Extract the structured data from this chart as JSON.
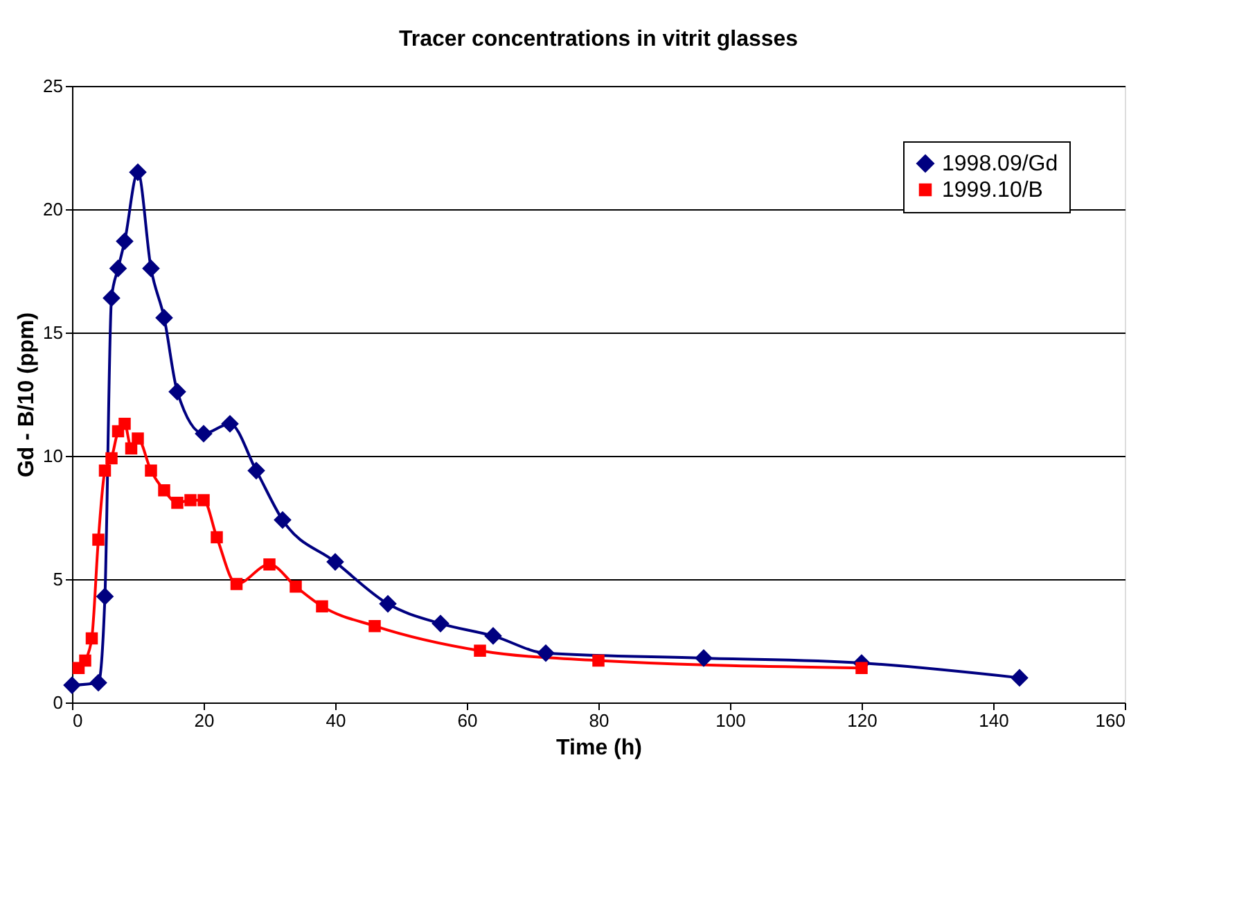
{
  "chart_data": {
    "type": "line",
    "title": "Tracer concentrations in vitrit glasses",
    "xlabel": "Time (h)",
    "ylabel": "Gd - B/10  (ppm)",
    "series": [
      {
        "name": "1998.09/Gd",
        "color": "#000080",
        "marker": "diamond",
        "x": [
          0,
          4,
          5,
          6,
          7,
          8,
          10,
          12,
          14,
          16,
          20,
          24,
          28,
          32,
          40,
          48,
          56,
          64,
          72,
          96,
          120,
          144
        ],
        "values": [
          0.7,
          0.8,
          4.3,
          16.4,
          17.6,
          18.7,
          21.5,
          17.6,
          15.6,
          12.6,
          10.9,
          11.3,
          9.4,
          7.4,
          5.7,
          4.0,
          3.2,
          2.7,
          2.0,
          1.8,
          1.6,
          1.0
        ]
      },
      {
        "name": "1999.10/B",
        "color": "#ff0000",
        "marker": "square",
        "x": [
          1,
          2,
          3,
          4,
          5,
          6,
          7,
          8,
          9,
          10,
          12,
          14,
          16,
          18,
          20,
          22,
          25,
          30,
          34,
          38,
          46,
          62,
          80,
          120
        ],
        "values": [
          1.4,
          1.7,
          2.6,
          6.6,
          9.4,
          9.9,
          11.0,
          11.3,
          10.3,
          10.7,
          9.4,
          8.6,
          8.1,
          8.2,
          8.2,
          6.7,
          4.8,
          5.6,
          4.7,
          3.9,
          3.1,
          2.1,
          1.7,
          1.4
        ]
      }
    ],
    "xlim": [
      0,
      160
    ],
    "xticks": [
      0,
      20,
      40,
      60,
      80,
      100,
      120,
      140,
      160
    ],
    "ylim": [
      0,
      25
    ],
    "yticks": [
      0,
      5,
      10,
      15,
      20,
      25
    ],
    "grid": "y",
    "legend": "top right",
    "line_style": "solid"
  }
}
